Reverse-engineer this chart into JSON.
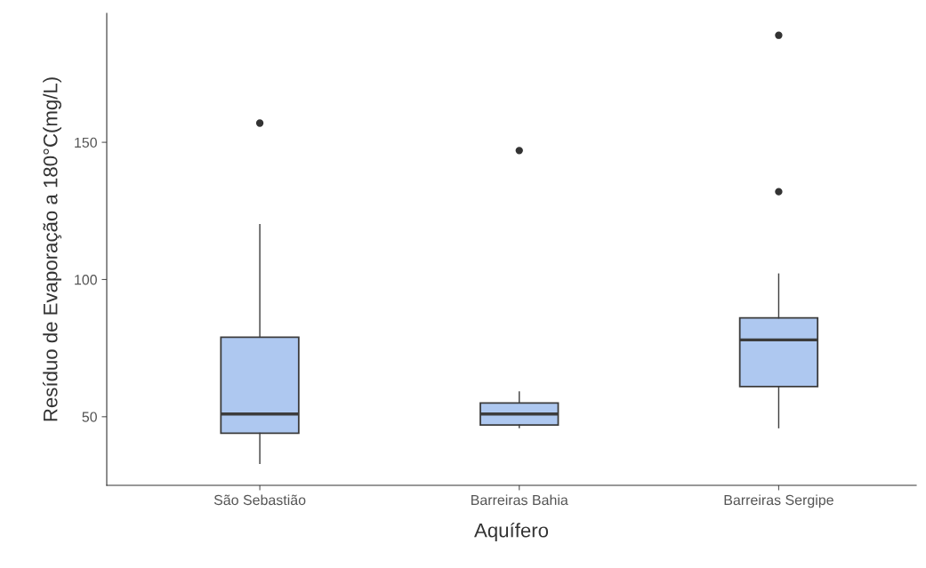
{
  "chart_data": {
    "type": "box",
    "xlabel": "Aquífero",
    "ylabel": "Resíduo de Evaporação a 180°C(mg/L)",
    "categories": [
      "São Sebastião",
      "Barreiras Bahia",
      "Barreiras Sergipe"
    ],
    "boxes": [
      {
        "low": 33,
        "q1": 44,
        "median": 51,
        "q3": 79,
        "high": 120,
        "outliers": [
          157
        ]
      },
      {
        "low": 46,
        "q1": 47,
        "median": 51,
        "q3": 55,
        "high": 59,
        "outliers": [
          147
        ]
      },
      {
        "low": 46,
        "q1": 61,
        "median": 78,
        "q3": 86,
        "high": 102,
        "outliers": [
          189,
          132
        ]
      }
    ],
    "color": "#aec8f0",
    "ylim": [
      25,
      197
    ],
    "yticks": [
      50,
      100,
      150
    ]
  }
}
